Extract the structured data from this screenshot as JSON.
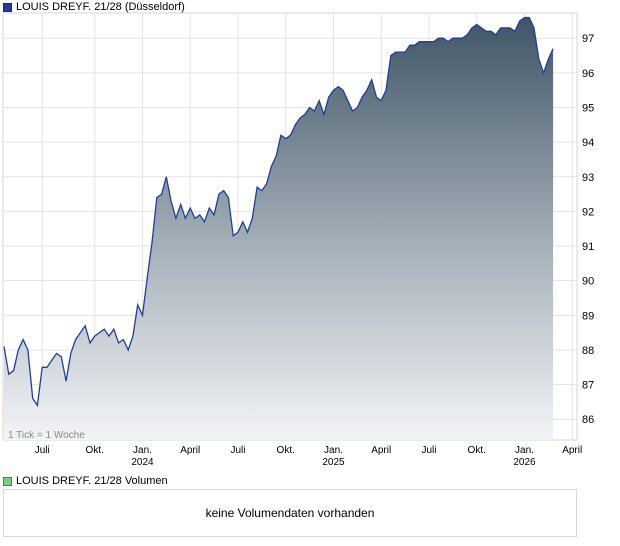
{
  "legend": {
    "price_label": "LOUIS DREYF. 21/28 (Düsseldorf)",
    "volume_label": "LOUIS DREYF. 21/28 Volumen",
    "price_color": "#1f3f99",
    "volume_color": "#7dcf7d"
  },
  "volume": {
    "empty_text": "keine Volumendaten vorhanden"
  },
  "chart_data": {
    "type": "area",
    "tick_info": "1 Tick = 1 Woche",
    "ylim": [
      85.4,
      97.7
    ],
    "yticks": [
      86,
      87,
      88,
      89,
      90,
      91,
      92,
      93,
      94,
      95,
      96,
      97
    ],
    "xlim": [
      0,
      120
    ],
    "xticks": [
      {
        "pos": 8,
        "label": "Juli",
        "year": ""
      },
      {
        "pos": 19,
        "label": "Okt.",
        "year": ""
      },
      {
        "pos": 29,
        "label": "Jan.",
        "year": "2024"
      },
      {
        "pos": 39,
        "label": "April",
        "year": ""
      },
      {
        "pos": 49,
        "label": "Juli",
        "year": ""
      },
      {
        "pos": 59,
        "label": "Okt.",
        "year": ""
      },
      {
        "pos": 69,
        "label": "Jan.",
        "year": "2025"
      },
      {
        "pos": 79,
        "label": "April",
        "year": ""
      },
      {
        "pos": 89,
        "label": "Juli",
        "year": ""
      },
      {
        "pos": 99,
        "label": "Okt.",
        "year": ""
      },
      {
        "pos": 109,
        "label": "Jan.",
        "year": "2026"
      },
      {
        "pos": 119,
        "label": "April",
        "year": ""
      }
    ],
    "series": [
      {
        "color": "#1f3f99",
        "values": [
          88.1,
          87.3,
          87.4,
          88.0,
          88.3,
          88.0,
          86.6,
          86.4,
          87.5,
          87.5,
          87.7,
          87.9,
          87.8,
          87.1,
          87.9,
          88.3,
          88.5,
          88.7,
          88.2,
          88.4,
          88.5,
          88.6,
          88.4,
          88.6,
          88.2,
          88.3,
          88.0,
          88.4,
          89.3,
          89.0,
          90.1,
          91.1,
          92.4,
          92.5,
          93.0,
          92.3,
          91.8,
          92.2,
          91.8,
          92.1,
          91.8,
          91.9,
          91.7,
          92.1,
          91.9,
          92.5,
          92.6,
          92.4,
          91.3,
          91.4,
          91.7,
          91.4,
          91.8,
          92.7,
          92.6,
          92.8,
          93.3,
          93.6,
          94.2,
          94.1,
          94.2,
          94.5,
          94.7,
          94.8,
          95.0,
          94.9,
          95.2,
          94.8,
          95.3,
          95.5,
          95.6,
          95.5,
          95.2,
          94.9,
          95.0,
          95.3,
          95.5,
          95.8,
          95.3,
          95.2,
          95.5,
          96.5,
          96.6,
          96.6,
          96.6,
          96.8,
          96.8,
          96.9,
          96.9,
          96.9,
          96.9,
          97.0,
          97.0,
          96.9,
          97.0,
          97.0,
          97.0,
          97.1,
          97.3,
          97.4,
          97.3,
          97.2,
          97.2,
          97.1,
          97.3,
          97.3,
          97.3,
          97.2,
          97.5,
          97.6,
          97.6,
          97.3,
          96.4,
          96.0,
          96.4,
          96.7
        ]
      }
    ]
  }
}
